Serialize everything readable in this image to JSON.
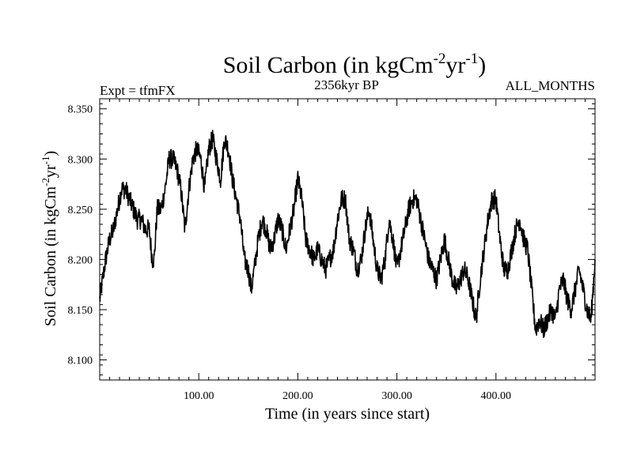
{
  "chart_data": {
    "type": "line",
    "title_main": "Soil Carbon (in kgCm",
    "title_sup1": "-2",
    "title_mid": "yr",
    "title_sup2": "-1",
    "title_end": ")",
    "subtitle_left": "Expt = tfmFX",
    "subtitle_center": "2356kyr BP",
    "subtitle_right": "ALL_MONTHS",
    "xlabel": "Time (in years since start)",
    "ylabel_main": "Soil Carbon (in kgCm",
    "ylabel_sup1": "-2",
    "ylabel_mid": "yr",
    "ylabel_sup2": "-1",
    "ylabel_end": ")",
    "xlim": [
      0,
      500
    ],
    "ylim": [
      8.08,
      8.36
    ],
    "xticks": [
      100,
      200,
      300,
      400
    ],
    "xtick_labels": [
      "100.00",
      "200.00",
      "300.00",
      "400.00"
    ],
    "yticks": [
      8.1,
      8.15,
      8.2,
      8.25,
      8.3,
      8.35
    ],
    "ytick_labels": [
      "8.100",
      "8.150",
      "8.200",
      "8.250",
      "8.300",
      "8.350"
    ],
    "series": [
      {
        "name": "Soil Carbon",
        "color": "#000000",
        "x": [
          0,
          3,
          6,
          10,
          14,
          18,
          22,
          26,
          30,
          34,
          38,
          42,
          46,
          50,
          53,
          55,
          58,
          62,
          66,
          70,
          74,
          78,
          82,
          86,
          90,
          94,
          98,
          102,
          106,
          110,
          114,
          118,
          122,
          126,
          130,
          134,
          138,
          142,
          146,
          150,
          153,
          156,
          160,
          164,
          168,
          172,
          176,
          180,
          184,
          188,
          192,
          196,
          200,
          204,
          208,
          212,
          216,
          220,
          224,
          228,
          232,
          236,
          240,
          244,
          248,
          252,
          256,
          260,
          264,
          268,
          272,
          276,
          280,
          284,
          288,
          292,
          296,
          300,
          304,
          308,
          312,
          316,
          320,
          324,
          328,
          332,
          336,
          340,
          344,
          348,
          352,
          356,
          360,
          364,
          368,
          372,
          376,
          380,
          384,
          388,
          392,
          396,
          400,
          404,
          408,
          412,
          416,
          420,
          424,
          428,
          432,
          436,
          440,
          444,
          448,
          452,
          456,
          460,
          464,
          468,
          472,
          476,
          480,
          484,
          488,
          492,
          496,
          500
        ],
        "values": [
          8.16,
          8.18,
          8.2,
          8.22,
          8.23,
          8.25,
          8.27,
          8.27,
          8.26,
          8.25,
          8.24,
          8.24,
          8.23,
          8.23,
          8.2,
          8.2,
          8.25,
          8.25,
          8.27,
          8.3,
          8.3,
          8.29,
          8.27,
          8.23,
          8.27,
          8.3,
          8.31,
          8.3,
          8.27,
          8.31,
          8.32,
          8.3,
          8.28,
          8.32,
          8.31,
          8.28,
          8.26,
          8.24,
          8.2,
          8.19,
          8.17,
          8.19,
          8.22,
          8.24,
          8.23,
          8.21,
          8.22,
          8.24,
          8.23,
          8.21,
          8.23,
          8.25,
          8.28,
          8.26,
          8.22,
          8.21,
          8.2,
          8.21,
          8.2,
          8.19,
          8.2,
          8.21,
          8.24,
          8.26,
          8.26,
          8.22,
          8.21,
          8.19,
          8.2,
          8.23,
          8.25,
          8.22,
          8.19,
          8.18,
          8.2,
          8.24,
          8.22,
          8.19,
          8.21,
          8.23,
          8.25,
          8.26,
          8.26,
          8.24,
          8.22,
          8.2,
          8.19,
          8.18,
          8.2,
          8.22,
          8.2,
          8.18,
          8.17,
          8.18,
          8.19,
          8.18,
          8.16,
          8.14,
          8.18,
          8.21,
          8.24,
          8.26,
          8.26,
          8.22,
          8.19,
          8.19,
          8.21,
          8.23,
          8.24,
          8.22,
          8.21,
          8.17,
          8.13,
          8.14,
          8.13,
          8.14,
          8.15,
          8.14,
          8.17,
          8.18,
          8.16,
          8.15,
          8.17,
          8.19,
          8.17,
          8.15,
          8.14,
          8.2
        ]
      }
    ],
    "grid": false
  }
}
